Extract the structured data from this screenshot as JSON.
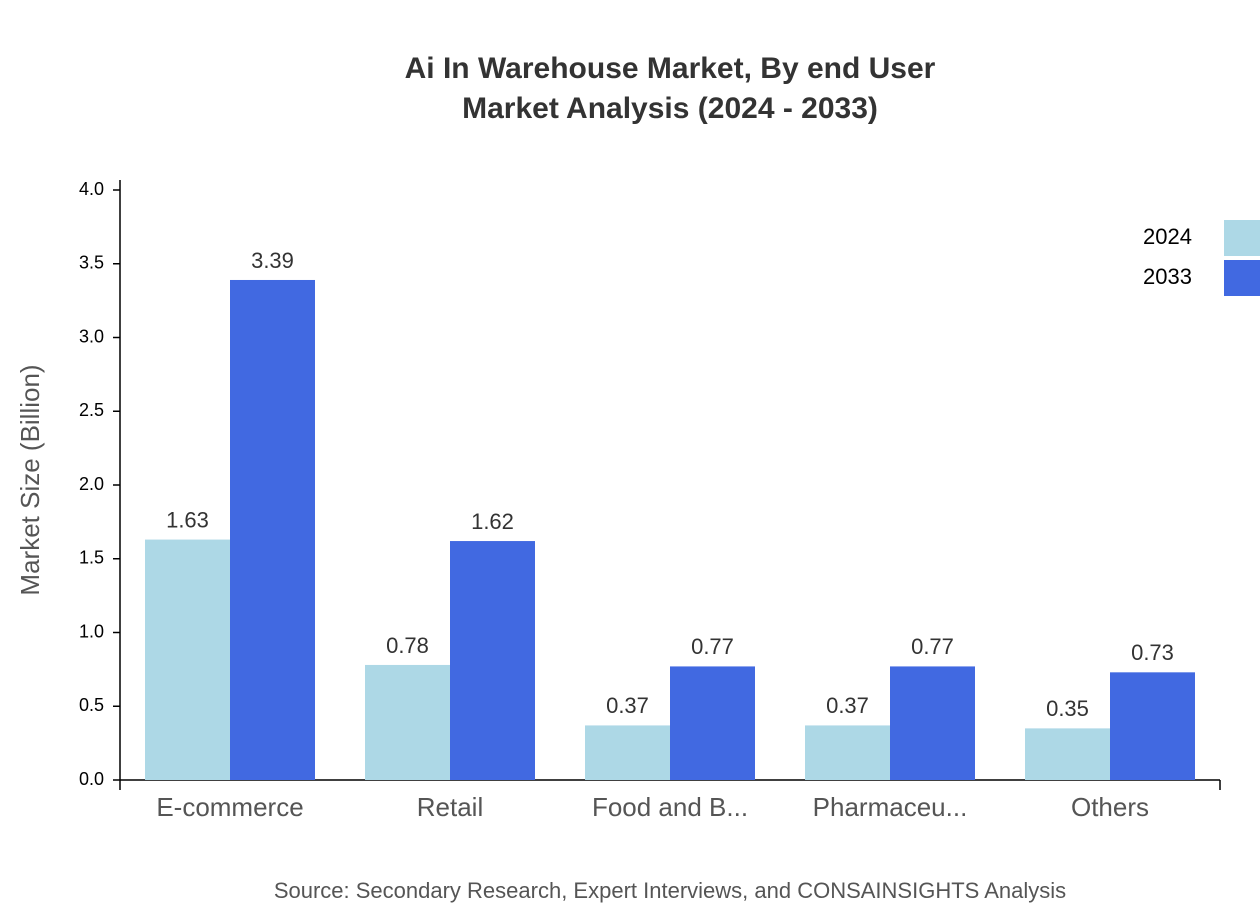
{
  "chart_data": {
    "type": "bar",
    "title": [
      "Ai In Warehouse Market, By end User",
      "Market Analysis (2024 - 2033)"
    ],
    "y_label": "Market Size (Billion)",
    "source": "Source: Secondary Research, Expert Interviews, and CONSAINSIGHTS Analysis",
    "categories": [
      "E-commerce",
      "Retail",
      "Food and B...",
      "Pharmaceu...",
      "Others"
    ],
    "series": [
      {
        "name": "2024",
        "color": "#add8e6",
        "values": [
          1.63,
          0.78,
          0.37,
          0.37,
          0.35
        ]
      },
      {
        "name": "2033",
        "color": "#4169e1",
        "values": [
          3.39,
          1.62,
          0.77,
          0.77,
          0.73
        ]
      }
    ],
    "ylim": [
      0,
      4
    ],
    "yticks": [
      {
        "value": 0,
        "label": "0.0"
      },
      0.5,
      {
        "value": 1,
        "label": "1.0"
      },
      1.5,
      {
        "value": 2,
        "label": "2.0"
      },
      2.5,
      {
        "value": 3,
        "label": "3.0"
      },
      3.5,
      {
        "value": 4,
        "label": "4.0"
      }
    ],
    "grid": false,
    "legend": "top-right"
  }
}
